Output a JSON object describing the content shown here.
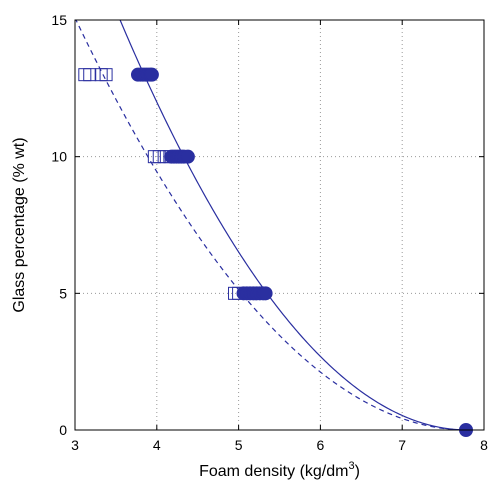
{
  "chart_data": {
    "type": "scatter",
    "xlabel": "Foam density (kg/dm",
    "xlabel_sup": "3",
    "xlabel_end": ")",
    "ylabel": "Glass percentage (% wt)",
    "xlim": [
      3,
      8
    ],
    "ylim": [
      0,
      15
    ],
    "xticks": [
      "3",
      "4",
      "5",
      "6",
      "7",
      "8"
    ],
    "yticks": [
      "0",
      "5",
      "10",
      "15"
    ],
    "grid": true,
    "grid_style": "dotted",
    "colors": {
      "series": "#2a2fa0",
      "axis": "#000000",
      "grid": "#9a9a9a"
    },
    "series": [
      {
        "marker": "square-open",
        "points": [
          [
            3.12,
            13
          ],
          [
            3.18,
            13
          ],
          [
            3.32,
            13
          ],
          [
            3.38,
            13
          ],
          [
            3.97,
            10
          ],
          [
            4.03,
            10
          ],
          [
            4.09,
            10
          ],
          [
            4.16,
            10
          ],
          [
            4.95,
            5
          ],
          [
            5.0,
            5
          ]
        ]
      },
      {
        "marker": "circle-filled",
        "points": [
          [
            3.77,
            13
          ],
          [
            3.8,
            13
          ],
          [
            3.83,
            13
          ],
          [
            3.86,
            13
          ],
          [
            3.89,
            13
          ],
          [
            3.92,
            13
          ],
          [
            3.94,
            13
          ],
          [
            4.18,
            10
          ],
          [
            4.21,
            10
          ],
          [
            4.24,
            10
          ],
          [
            4.27,
            10
          ],
          [
            4.3,
            10
          ],
          [
            4.33,
            10
          ],
          [
            4.38,
            10
          ],
          [
            5.06,
            5
          ],
          [
            5.1,
            5
          ],
          [
            5.14,
            5
          ],
          [
            5.18,
            5
          ],
          [
            5.22,
            5
          ],
          [
            5.26,
            5
          ],
          [
            5.3,
            5
          ],
          [
            5.33,
            5
          ],
          [
            7.78,
            0
          ]
        ]
      },
      {
        "marker": "line-solid",
        "fit": "quadratic",
        "vertex_x": 7.8,
        "points": [
          [
            3.56,
            15
          ],
          [
            3.9,
            13
          ],
          [
            4.35,
            10
          ],
          [
            5.0,
            5.9
          ],
          [
            5.5,
            4.0
          ],
          [
            6.0,
            2.45
          ],
          [
            6.5,
            1.25
          ],
          [
            7.0,
            0.48
          ],
          [
            7.5,
            0.07
          ],
          [
            7.8,
            0
          ]
        ]
      },
      {
        "marker": "line-dashed",
        "fit": "quadratic",
        "vertex_x": 7.8,
        "points": [
          [
            3.0,
            14.8
          ],
          [
            3.5,
            12.1
          ],
          [
            4.0,
            9.4
          ],
          [
            4.5,
            7.3
          ],
          [
            5.0,
            5.4
          ],
          [
            5.5,
            3.8
          ],
          [
            6.0,
            2.45
          ],
          [
            6.5,
            1.25
          ],
          [
            7.0,
            0.48
          ],
          [
            7.5,
            0.07
          ],
          [
            7.8,
            0
          ]
        ]
      }
    ]
  }
}
